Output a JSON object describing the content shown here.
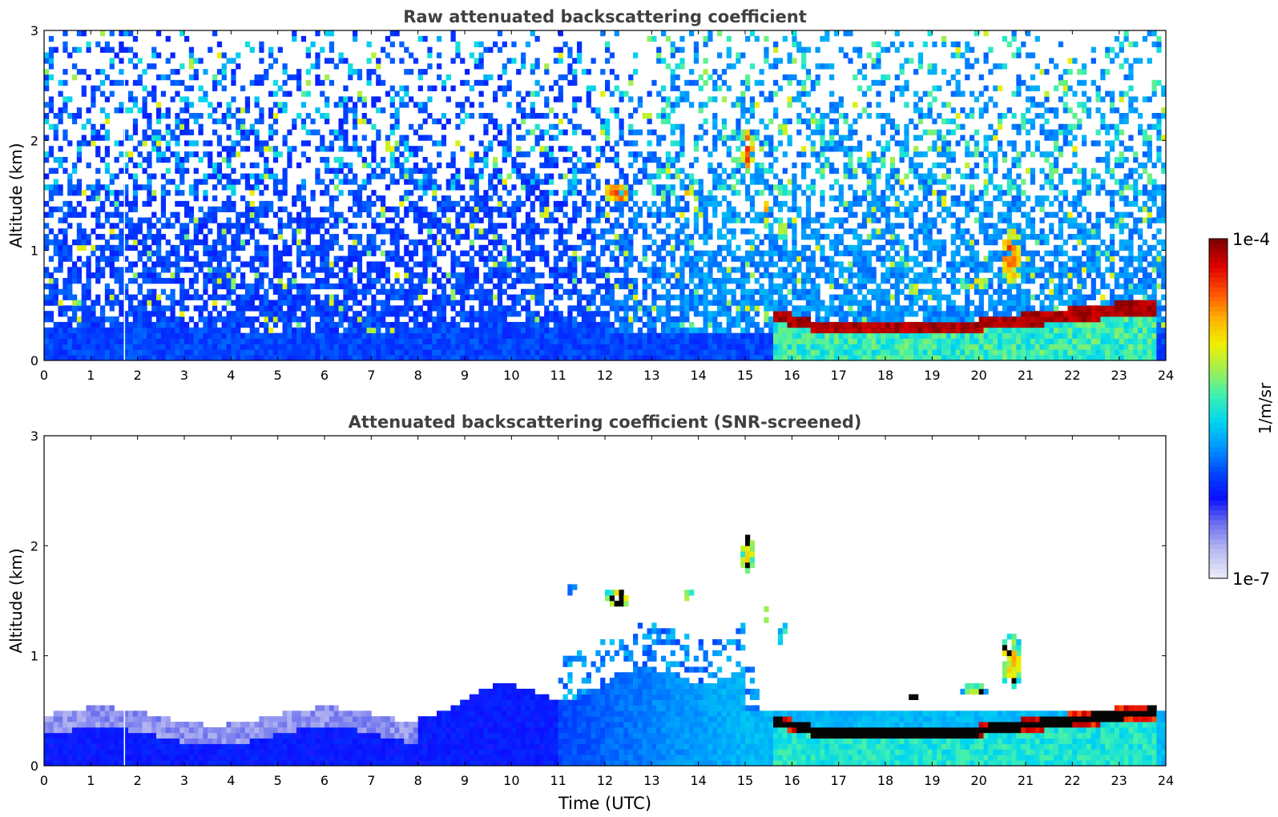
{
  "colorbar": {
    "max_label": "1e-4",
    "min_label": "1e-7",
    "unit_label": "1/m/sr",
    "scale": "log",
    "colormap": "jet",
    "colors": [
      "#e8e8f8",
      "#b7b9f0",
      "#6f73ee",
      "#0a10ff",
      "#0046ff",
      "#0096ff",
      "#00d6f0",
      "#3ff0b0",
      "#a0f050",
      "#f0f000",
      "#ffb000",
      "#ff5000",
      "#e00000",
      "#800000"
    ]
  },
  "chart_data": [
    {
      "type": "heatmap",
      "title": "Raw attenuated backscattering coefficient",
      "xlabel": "",
      "ylabel": "Altitude (km)",
      "xlim": [
        0,
        24
      ],
      "ylim": [
        0,
        3
      ],
      "x_ticks": [
        "0",
        "1",
        "2",
        "3",
        "4",
        "5",
        "6",
        "7",
        "8",
        "9",
        "10",
        "11",
        "12",
        "13",
        "14",
        "15",
        "16",
        "17",
        "18",
        "19",
        "20",
        "21",
        "22",
        "23",
        "24"
      ],
      "y_ticks": [
        "0",
        "1",
        "2",
        "3"
      ],
      "features": [
        {
          "feature": "boundary layer aerosol",
          "time_start": 0,
          "time_end": 15.5,
          "alt_top": 0.35,
          "level": "low"
        },
        {
          "feature": "low cloud layer",
          "time_start": 15.6,
          "time_end": 23.8,
          "alt_bottom": 0.25,
          "alt_top": 0.4,
          "level": "high"
        },
        {
          "feature": "elevated cloud",
          "time_start": 12.0,
          "time_end": 12.6,
          "alt_bottom": 1.45,
          "alt_top": 1.6,
          "level": "high"
        },
        {
          "feature": "elevated cloud",
          "time_start": 14.9,
          "time_end": 15.2,
          "alt_bottom": 1.7,
          "alt_top": 2.1,
          "level": "high"
        },
        {
          "feature": "convective plume",
          "time_start": 20.4,
          "time_end": 20.9,
          "alt_bottom": 0.4,
          "alt_top": 1.2,
          "level": "high"
        }
      ]
    },
    {
      "type": "heatmap",
      "title": "Attenuated backscattering coefficient (SNR-screened)",
      "xlabel": "Time (UTC)",
      "ylabel": "Altitude (km)",
      "xlim": [
        0,
        24
      ],
      "ylim": [
        0,
        3
      ],
      "x_ticks": [
        "0",
        "1",
        "2",
        "3",
        "4",
        "5",
        "6",
        "7",
        "8",
        "9",
        "10",
        "11",
        "12",
        "13",
        "14",
        "15",
        "16",
        "17",
        "18",
        "19",
        "20",
        "21",
        "22",
        "23",
        "24"
      ],
      "y_ticks": [
        "0",
        "1",
        "2",
        "3"
      ],
      "features": [
        {
          "feature": "boundary layer aerosol",
          "time_start": 0,
          "time_end": 15.5,
          "alt_top": 0.6,
          "level": "low"
        },
        {
          "feature": "aerosol growth",
          "time_start": 8,
          "time_end": 15,
          "alt_top": 1.0,
          "level": "mid"
        },
        {
          "feature": "low cloud layer",
          "time_start": 15.6,
          "time_end": 23.8,
          "alt_bottom": 0.25,
          "alt_top": 0.4,
          "level": "saturated"
        }
      ]
    }
  ]
}
